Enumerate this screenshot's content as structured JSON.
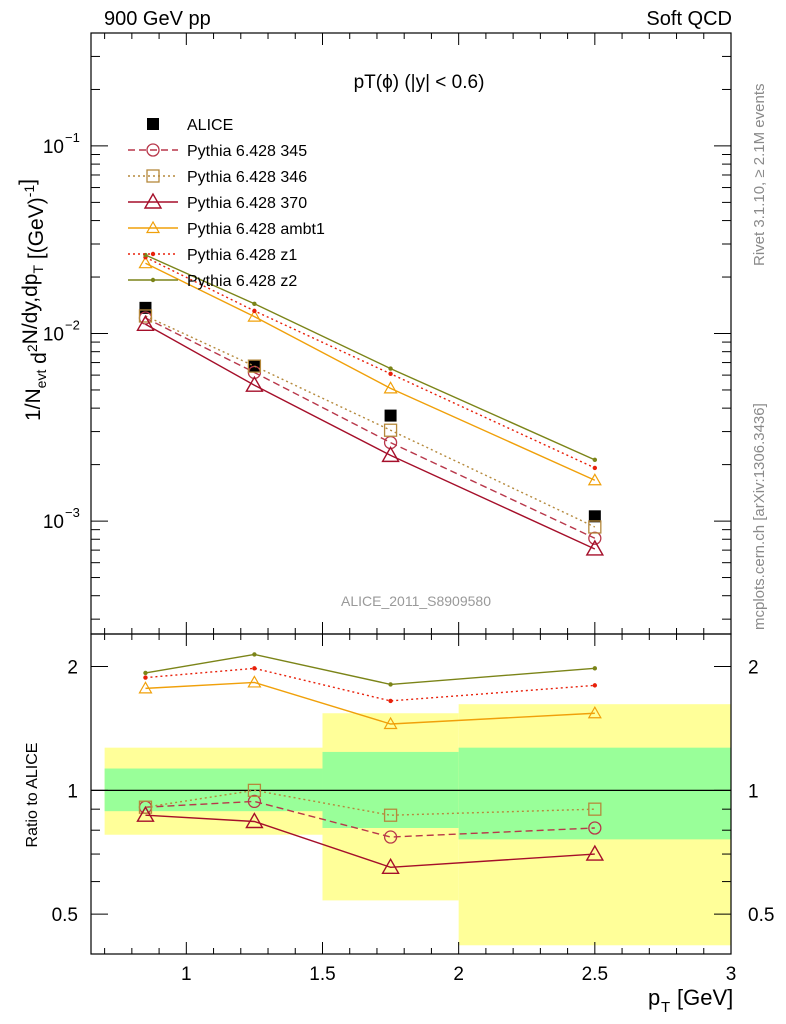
{
  "header": {
    "left": "900 GeV pp",
    "right": "Soft QCD"
  },
  "side": {
    "rivet": "Rivet 3.1.10, ≥ 2.1M events",
    "mcplots": "mcplots.cern.ch [arXiv:1306.3436]"
  },
  "colors": {
    "s345": "#b8374a",
    "s346": "#b5893c",
    "s370": "#a50f2a",
    "ambt1": "#f0a00a",
    "z1": "#e8200a",
    "z2": "#7b8418",
    "band_outer": "#ffff99",
    "band_inner": "#99ff99"
  },
  "chart_data": [
    {
      "type": "line",
      "panel": "main",
      "title": "pT(ϕ) (|y| < 0.6)",
      "xlabel": "p_T [GeV]",
      "ylabel": "1/N_evt d²N/dy,dp_T [(GeV)⁻¹]",
      "xlim": [
        0.65,
        3.0
      ],
      "ylim": [
        0.00025,
        0.4
      ],
      "yscale": "log",
      "yticks": [
        {
          "value": 0.1,
          "label": "10",
          "exp": "−1"
        },
        {
          "value": 0.01,
          "label": "10",
          "exp": "−2"
        },
        {
          "value": 0.001,
          "label": "10",
          "exp": "−3"
        }
      ],
      "watermark": "ALICE_2011_S8909580",
      "legend_position": "top-left",
      "x": [
        0.85,
        1.25,
        1.75,
        2.5
      ],
      "series": [
        {
          "name": "ALICE",
          "key": "data",
          "values": [
            0.0137,
            0.0067,
            0.00365,
            0.00106
          ]
        },
        {
          "name": "Pythia 6.428 345",
          "key": "s345",
          "values": [
            0.0121,
            0.0062,
            0.00262,
            0.00081
          ]
        },
        {
          "name": "Pythia 6.428 346",
          "key": "s346",
          "values": [
            0.0124,
            0.0067,
            0.00305,
            0.00093
          ]
        },
        {
          "name": "Pythia 6.428 370",
          "key": "s370",
          "values": [
            0.0112,
            0.0053,
            0.00224,
            0.00071
          ]
        },
        {
          "name": "Pythia 6.428 ambt1",
          "key": "ambt1",
          "values": [
            0.0237,
            0.0123,
            0.0051,
            0.00165
          ]
        },
        {
          "name": "Pythia 6.428 z1",
          "key": "z1",
          "values": [
            0.0255,
            0.0132,
            0.0061,
            0.00192
          ]
        },
        {
          "name": "Pythia 6.428 z2",
          "key": "z2",
          "values": [
            0.0262,
            0.0144,
            0.0065,
            0.00212
          ]
        }
      ]
    },
    {
      "type": "line",
      "panel": "ratio",
      "ylabel": "Ratio to ALICE",
      "xlabel": "p_T [GeV]",
      "xlim": [
        0.65,
        3.0
      ],
      "ylim": [
        0.4,
        2.4
      ],
      "yscale": "log",
      "yticks": [
        {
          "value": 0.5,
          "label": "0.5"
        },
        {
          "value": 1,
          "label": "1"
        },
        {
          "value": 2,
          "label": "2"
        }
      ],
      "xticks": [
        1,
        1.5,
        2,
        2.5,
        3
      ],
      "xticklabels": [
        "1",
        "1.5",
        "2",
        "2.5",
        "3"
      ],
      "x": [
        0.85,
        1.25,
        1.75,
        2.5
      ],
      "bands": [
        {
          "x0": 0.7,
          "x1": 1.5,
          "outer": [
            0.78,
            1.27
          ],
          "inner": [
            0.89,
            1.13
          ]
        },
        {
          "x0": 1.5,
          "x1": 2.0,
          "outer": [
            0.54,
            1.54
          ],
          "inner": [
            0.81,
            1.24
          ]
        },
        {
          "x0": 2.0,
          "x1": 3.0,
          "outer": [
            0.42,
            1.62
          ],
          "inner": [
            0.76,
            1.27
          ]
        }
      ],
      "series": [
        {
          "name": "Pythia 6.428 345",
          "key": "s345",
          "values": [
            0.91,
            0.94,
            0.77,
            0.81
          ]
        },
        {
          "name": "Pythia 6.428 346",
          "key": "s346",
          "values": [
            0.91,
            1.0,
            0.87,
            0.9
          ]
        },
        {
          "name": "Pythia 6.428 370",
          "key": "s370",
          "values": [
            0.87,
            0.84,
            0.65,
            0.7
          ]
        },
        {
          "name": "Pythia 6.428 ambt1",
          "key": "ambt1",
          "values": [
            1.77,
            1.83,
            1.45,
            1.54
          ]
        },
        {
          "name": "Pythia 6.428 z1",
          "key": "z1",
          "values": [
            1.88,
            1.98,
            1.65,
            1.8
          ]
        },
        {
          "name": "Pythia 6.428 z2",
          "key": "z2",
          "values": [
            1.93,
            2.14,
            1.81,
            1.98
          ]
        }
      ]
    }
  ]
}
